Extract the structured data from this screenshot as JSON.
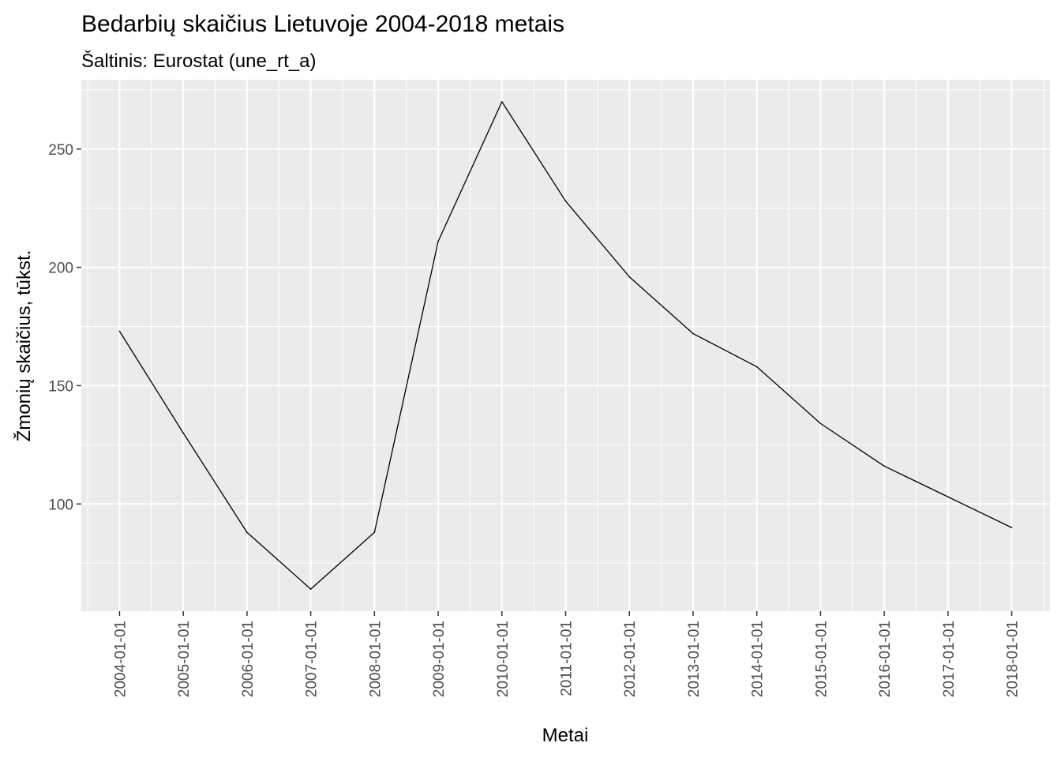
{
  "chart_data": {
    "type": "line",
    "title": "Bedarbių skaičius Lietuvoje 2004-2018 metais",
    "subtitle": "Šaltinis: Eurostat (une_rt_a)",
    "xlabel": "Metai",
    "ylabel": "Žmonių skaičius, tūkst.",
    "x": [
      "2004-01-01",
      "2005-01-01",
      "2006-01-01",
      "2007-01-01",
      "2008-01-01",
      "2009-01-01",
      "2010-01-01",
      "2011-01-01",
      "2012-01-01",
      "2013-01-01",
      "2014-01-01",
      "2015-01-01",
      "2016-01-01",
      "2017-01-01",
      "2018-01-01"
    ],
    "series": [
      {
        "values": [
          173,
          130,
          88,
          64,
          88,
          211,
          270,
          228,
          196,
          172,
          158,
          134,
          116,
          103,
          90
        ]
      }
    ],
    "y_ticks": [
      100,
      150,
      200,
      250
    ],
    "ylim": [
      54.7,
      279.3
    ],
    "grid": true,
    "colors": {
      "panel": "#ebebeb",
      "grid": "#ffffff",
      "line": "#000000"
    }
  }
}
